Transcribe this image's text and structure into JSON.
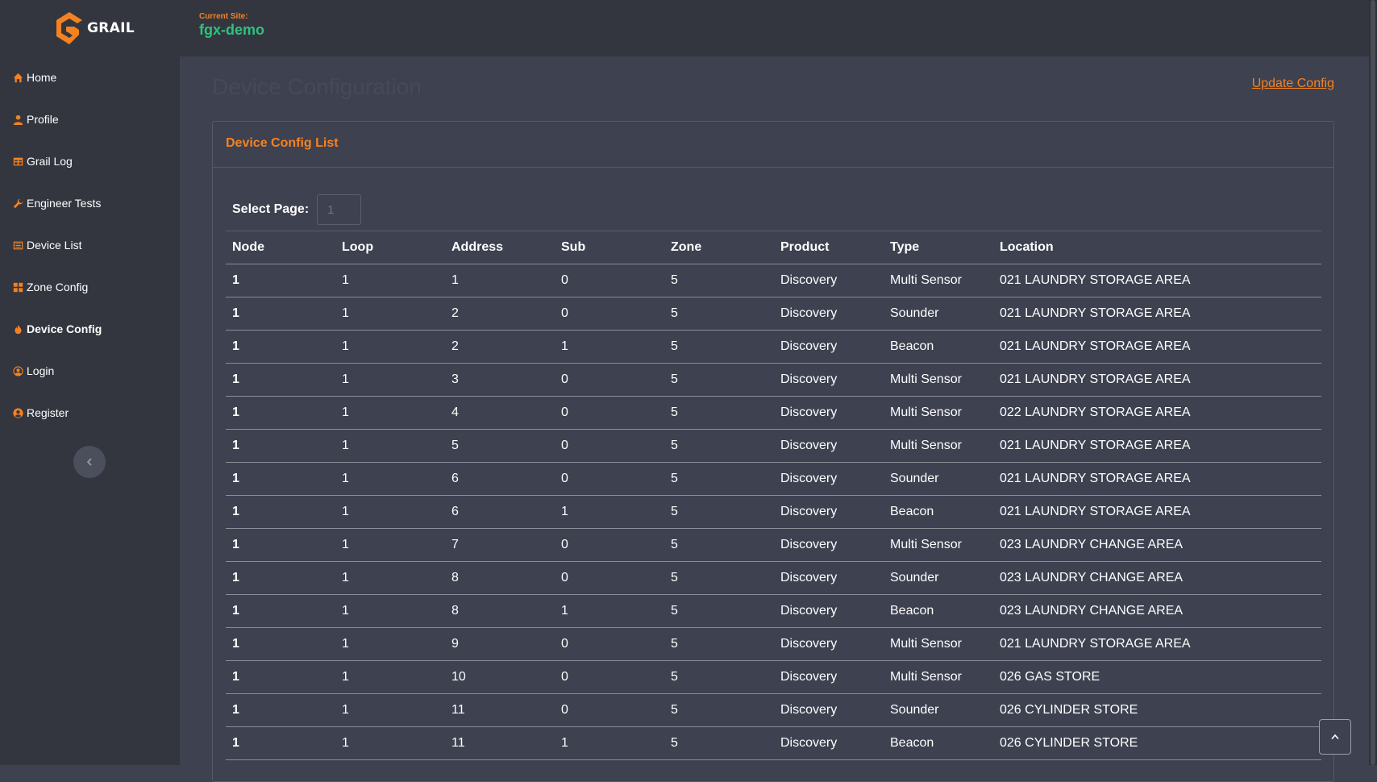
{
  "app": {
    "logo_text": "GRAIL"
  },
  "header": {
    "site_caption": "Current Site:",
    "site_name": "fgx-demo"
  },
  "sidebar": {
    "items": [
      {
        "label": "Home",
        "icon": "home-icon"
      },
      {
        "label": "Profile",
        "icon": "user-icon"
      },
      {
        "label": "Grail Log",
        "icon": "table-icon"
      },
      {
        "label": "Engineer Tests",
        "icon": "wrench-icon"
      },
      {
        "label": "Device List",
        "icon": "list-icon"
      },
      {
        "label": "Zone Config",
        "icon": "grid-icon"
      },
      {
        "label": "Device Config",
        "icon": "fire-icon",
        "active": true
      },
      {
        "label": "Login",
        "icon": "user-circle-icon"
      },
      {
        "label": "Register",
        "icon": "user-circle-filled-icon"
      }
    ],
    "collapse_icon": "chevron-left-icon"
  },
  "main": {
    "page_title": "Device Configuration",
    "update_link": "Update Config",
    "card_title": "Device Config List",
    "select_page_label": "Select Page:",
    "select_page_placeholder": "1",
    "columns": [
      "Node",
      "Loop",
      "Address",
      "Sub",
      "Zone",
      "Product",
      "Type",
      "Location"
    ],
    "rows": [
      [
        "1",
        "1",
        "1",
        "0",
        "5",
        "Discovery",
        "Multi Sensor",
        "021 LAUNDRY STORAGE AREA"
      ],
      [
        "1",
        "1",
        "2",
        "0",
        "5",
        "Discovery",
        "Sounder",
        "021 LAUNDRY STORAGE AREA"
      ],
      [
        "1",
        "1",
        "2",
        "1",
        "5",
        "Discovery",
        "Beacon",
        "021 LAUNDRY STORAGE AREA"
      ],
      [
        "1",
        "1",
        "3",
        "0",
        "5",
        "Discovery",
        "Multi Sensor",
        "021 LAUNDRY STORAGE AREA"
      ],
      [
        "1",
        "1",
        "4",
        "0",
        "5",
        "Discovery",
        "Multi Sensor",
        "022 LAUNDRY STORAGE AREA"
      ],
      [
        "1",
        "1",
        "5",
        "0",
        "5",
        "Discovery",
        "Multi Sensor",
        "021 LAUNDRY STORAGE AREA"
      ],
      [
        "1",
        "1",
        "6",
        "0",
        "5",
        "Discovery",
        "Sounder",
        "021 LAUNDRY STORAGE AREA"
      ],
      [
        "1",
        "1",
        "6",
        "1",
        "5",
        "Discovery",
        "Beacon",
        "021 LAUNDRY STORAGE AREA"
      ],
      [
        "1",
        "1",
        "7",
        "0",
        "5",
        "Discovery",
        "Multi Sensor",
        "023 LAUNDRY CHANGE AREA"
      ],
      [
        "1",
        "1",
        "8",
        "0",
        "5",
        "Discovery",
        "Sounder",
        "023 LAUNDRY CHANGE AREA"
      ],
      [
        "1",
        "1",
        "8",
        "1",
        "5",
        "Discovery",
        "Beacon",
        "023 LAUNDRY CHANGE AREA"
      ],
      [
        "1",
        "1",
        "9",
        "0",
        "5",
        "Discovery",
        "Multi Sensor",
        "021 LAUNDRY STORAGE AREA"
      ],
      [
        "1",
        "1",
        "10",
        "0",
        "5",
        "Discovery",
        "Multi Sensor",
        "026 GAS STORE"
      ],
      [
        "1",
        "1",
        "11",
        "0",
        "5",
        "Discovery",
        "Sounder",
        "026 CYLINDER STORE"
      ],
      [
        "1",
        "1",
        "11",
        "1",
        "5",
        "Discovery",
        "Beacon",
        "026 CYLINDER STORE"
      ]
    ]
  },
  "colors": {
    "accent": "#f58220",
    "site_green": "#2ec27e",
    "sidebar_bg": "#33363f",
    "main_bg": "#3d4150"
  },
  "scroll_top_icon": "chevron-up-icon"
}
